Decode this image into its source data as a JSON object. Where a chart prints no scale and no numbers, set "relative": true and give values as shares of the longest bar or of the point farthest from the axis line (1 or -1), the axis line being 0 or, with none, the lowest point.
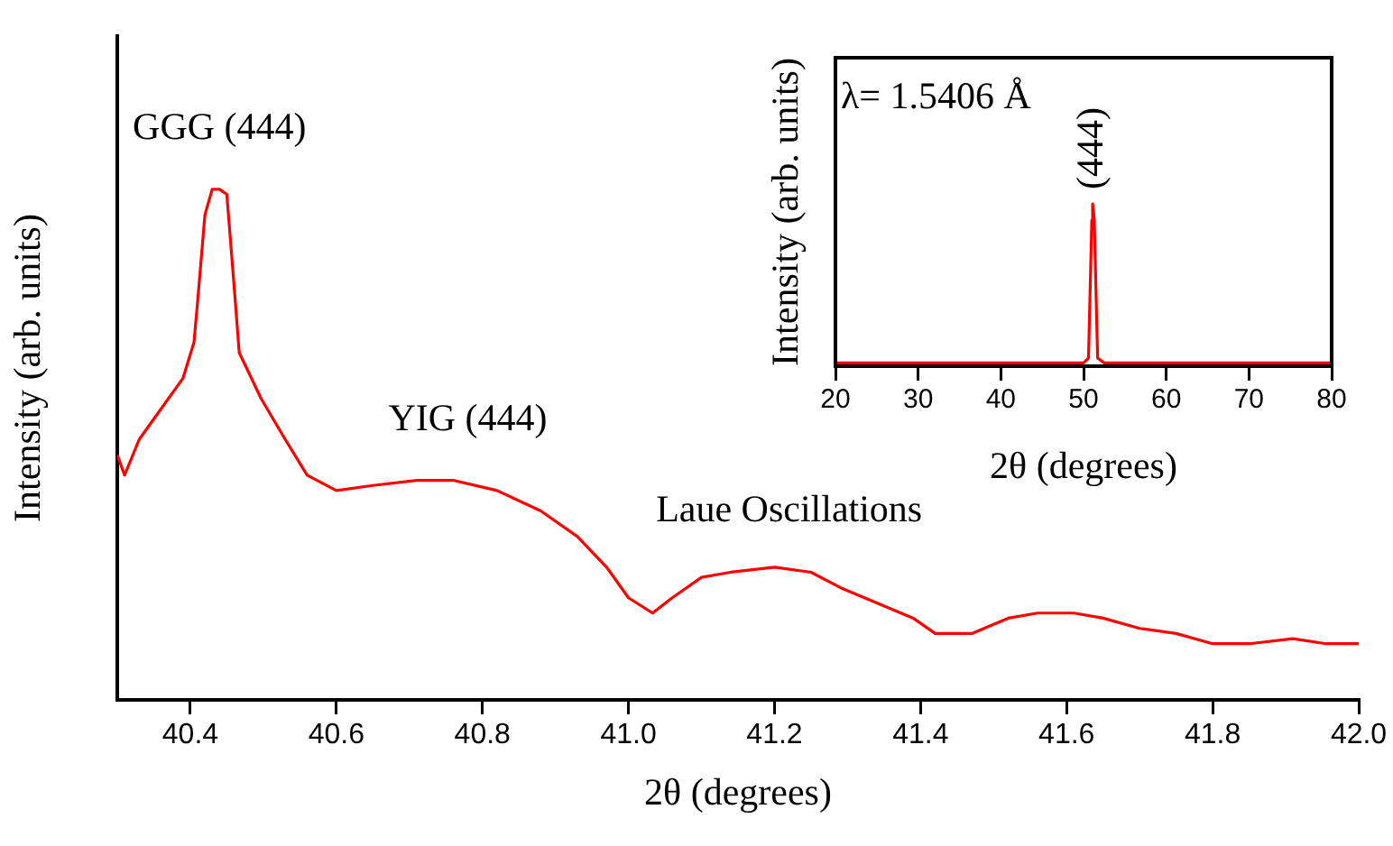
{
  "chart_data": [
    {
      "type": "line",
      "xlabel": "2θ (degrees)",
      "ylabel": "Intensity (arb. units)",
      "relative": true,
      "color": "#ff0000",
      "marker": "none",
      "legend": false,
      "grid": false,
      "x": [
        40.3,
        40.31,
        40.33,
        40.36,
        40.39,
        40.405,
        40.41,
        40.42,
        40.43,
        40.44,
        40.45,
        40.46,
        40.467,
        40.497,
        40.53,
        40.56,
        40.6,
        40.65,
        40.71,
        40.76,
        40.82,
        40.88,
        40.93,
        40.97,
        41.0,
        41.033,
        41.06,
        41.1,
        41.14,
        41.2,
        41.25,
        41.29,
        41.34,
        41.39,
        41.42,
        41.47,
        41.52,
        41.56,
        41.61,
        41.65,
        41.7,
        41.75,
        41.8,
        41.85,
        41.91,
        41.955,
        42.0
      ],
      "values": [
        0.48,
        0.44,
        0.51,
        0.57,
        0.63,
        0.7,
        0.78,
        0.95,
        1.0,
        1.0,
        0.99,
        0.81,
        0.68,
        0.59,
        0.51,
        0.44,
        0.41,
        0.42,
        0.43,
        0.43,
        0.41,
        0.37,
        0.32,
        0.26,
        0.2,
        0.17,
        0.2,
        0.24,
        0.25,
        0.26,
        0.25,
        0.22,
        0.19,
        0.16,
        0.13,
        0.13,
        0.16,
        0.17,
        0.17,
        0.16,
        0.14,
        0.13,
        0.11,
        0.11,
        0.12,
        0.11,
        0.11
      ],
      "xlim": [
        40.3,
        42.0
      ],
      "xticks": [
        40.4,
        40.6,
        40.8,
        {
          "value": 41,
          "label": "41.0"
        },
        41.2,
        41.4,
        41.6,
        41.8,
        {
          "value": 42,
          "label": "42.0"
        }
      ],
      "annotations": [
        {
          "text": "GGG (444)",
          "x": 40.44,
          "y": 1.0
        },
        {
          "text": "YIG (444)",
          "x": 40.78,
          "y": 0.43
        },
        {
          "text": "Laue Oscillations",
          "x": 41.22,
          "y": 0.25
        }
      ]
    },
    {
      "type": "line",
      "xlabel": "2θ (degrees)",
      "ylabel": "Intensity (arb. units)",
      "relative": true,
      "color": "#ff0000",
      "marker": "none",
      "legend": false,
      "grid": false,
      "x": [
        20,
        30,
        40,
        50,
        50.6,
        51.0,
        51.1,
        51.3,
        51.7,
        52.5,
        60,
        70,
        80
      ],
      "values": [
        0.02,
        0.02,
        0.02,
        0.02,
        0.05,
        0.9,
        1.0,
        0.9,
        0.05,
        0.02,
        0.02,
        0.02,
        0.02
      ],
      "xlim": [
        20,
        80
      ],
      "xticks": [
        20,
        30,
        40,
        50,
        60,
        70,
        80
      ],
      "annotations": [
        "λ= 1.5406 Å",
        {
          "text": "(444)",
          "x": 51.1,
          "y": 1.0
        }
      ]
    }
  ]
}
